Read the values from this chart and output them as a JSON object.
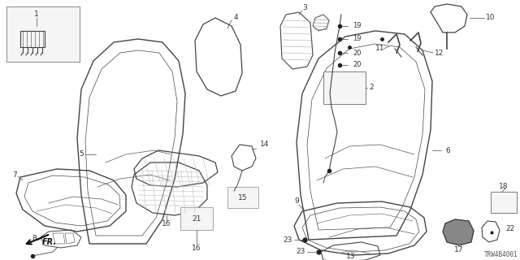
{
  "bg_color": "#ffffff",
  "diagram_id": "TRW4B4001",
  "line_color": "#444444",
  "label_color": "#333333",
  "font_size": 6.5,
  "fig_w": 6.4,
  "fig_h": 3.2,
  "dpi": 100
}
